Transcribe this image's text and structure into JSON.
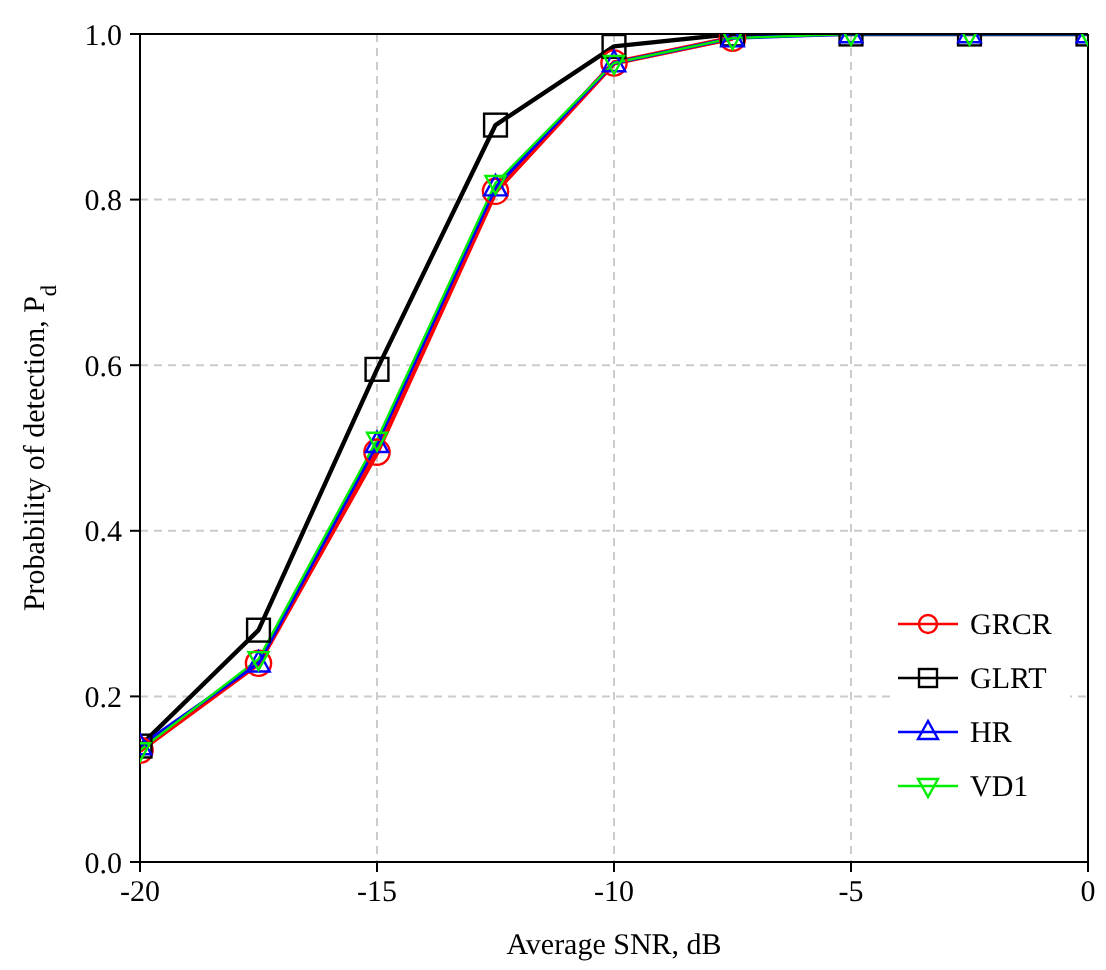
{
  "chart_data": {
    "type": "line",
    "xlabel": "Average SNR, dB",
    "ylabel": "Probability of detection, P$_{d}$",
    "x": [
      -20,
      -17.5,
      -15,
      -12.5,
      -10,
      -7.5,
      -5,
      -2.5,
      0
    ],
    "xlim": [
      -20,
      0
    ],
    "xticks": [
      -20,
      -15,
      -10,
      -5,
      0
    ],
    "ylim": [
      0,
      1
    ],
    "yticks": [
      {
        "value": 0,
        "label": "0.0"
      },
      {
        "value": 0.2,
        "label": "0.2"
      },
      {
        "value": 0.4,
        "label": "0.4"
      },
      {
        "value": 0.6,
        "label": "0.6"
      },
      {
        "value": 0.8,
        "label": "0.8"
      },
      {
        "value": 1,
        "label": "1.0"
      }
    ],
    "grid": true,
    "legend": "bottom right",
    "line_style": "solid",
    "series": [
      {
        "name": "GRCR",
        "color": "#ff0000",
        "marker": "circle",
        "values": [
          0.135,
          0.24,
          0.495,
          0.81,
          0.965,
          0.995,
          null,
          null,
          null
        ]
      },
      {
        "name": "GLRT",
        "color": "#000000",
        "marker": "square",
        "values": [
          0.14,
          0.28,
          0.595,
          0.89,
          0.985,
          1,
          1,
          1,
          1
        ]
      },
      {
        "name": "HR",
        "color": "#0000ff",
        "marker": "triangle",
        "values": [
          0.14,
          0.24,
          0.505,
          0.815,
          0.965,
          0.995,
          1,
          1,
          1
        ]
      },
      {
        "name": "VD1",
        "color": "#00ee00",
        "marker": "triangle-down",
        "values": [
          0.135,
          0.245,
          0.51,
          0.82,
          0.965,
          0.995,
          1,
          1,
          1
        ]
      }
    ]
  }
}
